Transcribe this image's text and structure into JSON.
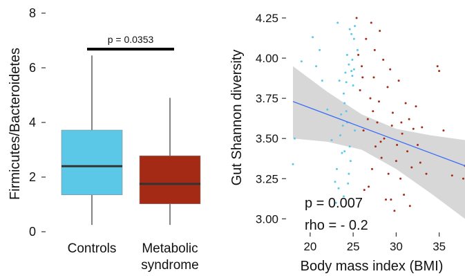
{
  "chart_data": [
    {
      "type": "box",
      "ylabel": "Firmicutes/Bacteroidetes",
      "xlabel": "",
      "ylim": [
        0,
        8
      ],
      "yticks": [
        "0",
        "2",
        "4",
        "6",
        "8"
      ],
      "grid": false,
      "colors": {
        "Controls": "#5bc8e8",
        "Metabolic syndrome": "#a52a16"
      },
      "groups": [
        {
          "label_lines": [
            "Controls"
          ],
          "whisker_low": 0.25,
          "q1": 1.35,
          "median": 2.4,
          "q3": 3.72,
          "whisker_high": 6.45,
          "color": "#5bc8e8"
        },
        {
          "label_lines": [
            "Metabolic",
            "syndrome"
          ],
          "whisker_low": 0.25,
          "q1": 1.02,
          "median": 1.75,
          "q3": 2.78,
          "whisker_high": 4.9,
          "color": "#a52a16"
        }
      ],
      "annotation": "p = 0.0353"
    },
    {
      "type": "scatter",
      "xlabel": "Body mass index (BMI)",
      "ylabel": "Gut Shannon diversity",
      "xlim": [
        18,
        38
      ],
      "ylim": [
        2.95,
        4.28
      ],
      "xticks": [
        "20",
        "25",
        "30",
        "35"
      ],
      "yticks": [
        "3.00",
        "3.25",
        "3.50",
        "3.75",
        "4.00",
        "4.25"
      ],
      "grid": false,
      "annotations": [
        "p = 0.007",
        "rho = - 0.2"
      ],
      "fit_line": {
        "x": [
          18,
          38
        ],
        "y": [
          3.73,
          3.33
        ],
        "color": "#3b6ff5"
      },
      "confidence_band": {
        "x": [
          18,
          22,
          26,
          30,
          34,
          38
        ],
        "upper": [
          3.95,
          3.79,
          3.65,
          3.56,
          3.52,
          3.49
        ],
        "lower": [
          3.5,
          3.48,
          3.43,
          3.31,
          3.16,
          3.0
        ],
        "color": "#d3d3d3"
      },
      "series": [
        {
          "color": "#5bc8e8",
          "x": [
            18.0,
            18.2,
            19.0,
            20.3,
            20.7,
            21.1,
            21.4,
            22.0,
            22.5,
            22.9,
            23.0,
            23.2,
            23.4,
            23.6,
            23.8,
            23.9,
            24.0,
            24.1,
            24.2,
            24.3,
            24.4,
            24.5,
            24.6,
            24.7,
            24.8,
            24.9,
            25.0,
            25.1,
            25.2,
            23.1,
            23.5,
            24.0,
            24.3,
            24.6,
            24.9,
            25.2,
            25.5,
            23.3,
            23.9,
            24.5,
            25.1,
            23.7,
            24.2,
            24.8
          ],
          "y": [
            3.34,
            3.5,
            3.98,
            4.13,
            3.95,
            4.05,
            3.86,
            3.68,
            3.49,
            3.23,
            3.1,
            4.22,
            3.86,
            3.65,
            3.58,
            3.14,
            3.42,
            3.91,
            3.85,
            4.02,
            3.22,
            3.96,
            4.18,
            3.36,
            3.92,
            3.99,
            3.83,
            4.12,
            4.2,
            3.31,
            3.52,
            3.72,
            3.6,
            3.45,
            3.89,
            3.55,
            4.05,
            3.19,
            3.78,
            3.28,
            3.93,
            3.41,
            3.67,
            4.15
          ]
        },
        {
          "color": "#a52a16",
          "x": [
            25.4,
            25.6,
            25.8,
            26.0,
            26.2,
            26.3,
            26.5,
            26.7,
            26.8,
            27.0,
            27.1,
            27.2,
            27.4,
            27.5,
            27.6,
            27.8,
            28.0,
            28.1,
            28.3,
            28.5,
            28.6,
            28.8,
            29.0,
            29.1,
            29.3,
            29.5,
            29.6,
            29.8,
            30.0,
            30.1,
            30.3,
            30.5,
            30.7,
            30.9,
            31.1,
            31.3,
            31.5,
            31.8,
            32.0,
            32.3,
            32.5,
            32.8,
            33.0,
            33.5,
            34.8,
            35.0,
            35.5,
            36.5,
            37.8,
            38.0,
            26.1,
            27.3,
            28.2,
            29.4,
            30.6,
            31.6
          ],
          "y": [
            4.25,
            4.02,
            3.8,
            3.95,
            3.55,
            3.18,
            4.12,
            3.62,
            3.2,
            3.75,
            4.22,
            3.31,
            3.88,
            4.05,
            3.45,
            3.6,
            3.73,
            4.17,
            3.38,
            3.99,
            3.5,
            3.12,
            3.82,
            3.28,
            3.93,
            3.58,
            3.66,
            3.05,
            3.36,
            3.46,
            3.86,
            3.25,
            3.53,
            3.15,
            3.72,
            3.42,
            3.62,
            3.32,
            3.56,
            3.7,
            3.46,
            3.35,
            3.57,
            3.28,
            3.95,
            3.92,
            3.55,
            3.27,
            3.25,
            3.33,
            3.88,
            3.67,
            3.48,
            3.12,
            3.6,
            3.08
          ]
        }
      ]
    }
  ]
}
